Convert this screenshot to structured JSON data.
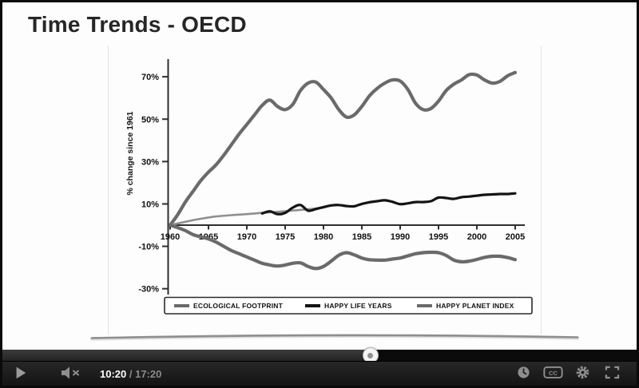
{
  "slide": {
    "title": "Time Trends - OECD"
  },
  "player": {
    "current_time": "10:20",
    "separator": " / ",
    "duration": "17:20",
    "progress_percent": 58,
    "cc_label": "CC",
    "icon_color": "#8e8e8e",
    "time_current_color": "#ffffff",
    "time_total_color": "#8a8a8a"
  },
  "chart_data": {
    "type": "line",
    "title": "",
    "xlabel": "",
    "ylabel": "% change since 1961",
    "x_ticks": [
      1960,
      1965,
      1970,
      1975,
      1980,
      1985,
      1990,
      1995,
      2000,
      2005
    ],
    "y_ticks": [
      70,
      50,
      30,
      10,
      -10,
      -30
    ],
    "y_tick_suffix": "%",
    "xlim": [
      1960,
      2006
    ],
    "ylim": [
      -30,
      75
    ],
    "grid": false,
    "legend_position": "bottom",
    "axis_color": "#2e2e2e",
    "tick_label_color": "#111111",
    "series": [
      {
        "name": "ECOLOGICAL FOOTPRINT",
        "color": "#6a6a6a",
        "width": 4.2,
        "in_legend": true,
        "points": [
          [
            1960,
            0
          ],
          [
            1961,
            5
          ],
          [
            1962,
            11
          ],
          [
            1963,
            16
          ],
          [
            1964,
            21
          ],
          [
            1965,
            25
          ],
          [
            1966,
            28.5
          ],
          [
            1967,
            33
          ],
          [
            1968,
            38
          ],
          [
            1969,
            43
          ],
          [
            1970,
            47.5
          ],
          [
            1971,
            52
          ],
          [
            1972,
            56.5
          ],
          [
            1973,
            59
          ],
          [
            1974,
            56
          ],
          [
            1975,
            54.5
          ],
          [
            1976,
            57
          ],
          [
            1977,
            63.5
          ],
          [
            1978,
            67
          ],
          [
            1979,
            67.5
          ],
          [
            1980,
            64
          ],
          [
            1981,
            60
          ],
          [
            1982,
            54.5
          ],
          [
            1983,
            51
          ],
          [
            1984,
            52
          ],
          [
            1985,
            56
          ],
          [
            1986,
            61
          ],
          [
            1987,
            64.5
          ],
          [
            1988,
            67
          ],
          [
            1989,
            68.5
          ],
          [
            1990,
            68
          ],
          [
            1991,
            64
          ],
          [
            1992,
            57.5
          ],
          [
            1993,
            54.5
          ],
          [
            1994,
            55
          ],
          [
            1995,
            58.5
          ],
          [
            1996,
            63.5
          ],
          [
            1997,
            66.5
          ],
          [
            1998,
            68.5
          ],
          [
            1999,
            71
          ],
          [
            2000,
            70.8
          ],
          [
            2001,
            68.5
          ],
          [
            2002,
            67
          ],
          [
            2003,
            67.8
          ],
          [
            2004,
            70.4
          ],
          [
            2005,
            72
          ]
        ]
      },
      {
        "name": "HAPPY LIFE YEARS (pre-1980 smooth segment)",
        "color": "#8f8f8f",
        "width": 2.6,
        "in_legend": false,
        "points": [
          [
            1960,
            0
          ],
          [
            1962,
            1.6
          ],
          [
            1964,
            3
          ],
          [
            1966,
            4.1
          ],
          [
            1968,
            4.7
          ],
          [
            1970,
            5.2
          ],
          [
            1972,
            5.8
          ],
          [
            1974,
            6.3
          ],
          [
            1976,
            6.9
          ],
          [
            1978,
            7.5
          ],
          [
            1980,
            8.3
          ]
        ]
      },
      {
        "name": "HAPPY LIFE YEARS",
        "color": "#141414",
        "width": 3.2,
        "in_legend": true,
        "points": [
          [
            1972,
            5.5
          ],
          [
            1973,
            6.5
          ],
          [
            1974,
            5.2
          ],
          [
            1975,
            5.8
          ],
          [
            1976,
            8.3
          ],
          [
            1977,
            9.5
          ],
          [
            1978,
            6.8
          ],
          [
            1979,
            7.6
          ],
          [
            1980,
            8.5
          ],
          [
            1981,
            9.3
          ],
          [
            1982,
            9.5
          ],
          [
            1983,
            9
          ],
          [
            1984,
            8.9
          ],
          [
            1985,
            10
          ],
          [
            1986,
            10.8
          ],
          [
            1987,
            11.3
          ],
          [
            1988,
            11.7
          ],
          [
            1989,
            11
          ],
          [
            1990,
            9.9
          ],
          [
            1991,
            10.3
          ],
          [
            1992,
            10.9
          ],
          [
            1993,
            10.9
          ],
          [
            1994,
            11.3
          ],
          [
            1995,
            13
          ],
          [
            1996,
            12.8
          ],
          [
            1997,
            12.4
          ],
          [
            1998,
            13.2
          ],
          [
            1999,
            13.5
          ],
          [
            2000,
            13.9
          ],
          [
            2001,
            14.3
          ],
          [
            2002,
            14.5
          ],
          [
            2003,
            14.7
          ],
          [
            2004,
            14.7
          ],
          [
            2005,
            15
          ]
        ]
      },
      {
        "name": "HAPPY PLANET INDEX",
        "color": "#6a6a6a",
        "width": 4.2,
        "in_legend": true,
        "points": [
          [
            1960,
            0
          ],
          [
            1961,
            -1.2
          ],
          [
            1962,
            -2.6
          ],
          [
            1963,
            -4.5
          ],
          [
            1964,
            -5.5
          ],
          [
            1965,
            -6.5
          ],
          [
            1966,
            -8
          ],
          [
            1967,
            -10
          ],
          [
            1968,
            -12
          ],
          [
            1969,
            -13.5
          ],
          [
            1970,
            -15
          ],
          [
            1971,
            -16.5
          ],
          [
            1972,
            -18
          ],
          [
            1973,
            -18.8
          ],
          [
            1974,
            -19.3
          ],
          [
            1975,
            -18.8
          ],
          [
            1976,
            -18
          ],
          [
            1977,
            -17.8
          ],
          [
            1978,
            -19.5
          ],
          [
            1979,
            -20.5
          ],
          [
            1980,
            -19.5
          ],
          [
            1981,
            -17
          ],
          [
            1982,
            -14.2
          ],
          [
            1983,
            -13
          ],
          [
            1984,
            -14
          ],
          [
            1985,
            -15.5
          ],
          [
            1986,
            -16.3
          ],
          [
            1987,
            -16.5
          ],
          [
            1988,
            -16.5
          ],
          [
            1989,
            -16
          ],
          [
            1990,
            -15.5
          ],
          [
            1991,
            -14.5
          ],
          [
            1992,
            -13.5
          ],
          [
            1993,
            -13
          ],
          [
            1994,
            -12.8
          ],
          [
            1995,
            -13
          ],
          [
            1996,
            -14.3
          ],
          [
            1997,
            -16.5
          ],
          [
            1998,
            -17.3
          ],
          [
            1999,
            -17
          ],
          [
            2000,
            -16.2
          ],
          [
            2001,
            -15.2
          ],
          [
            2002,
            -14.7
          ],
          [
            2003,
            -14.7
          ],
          [
            2004,
            -15.3
          ],
          [
            2005,
            -16.3
          ]
        ]
      }
    ],
    "legend": [
      {
        "label": "ECOLOGICAL FOOTPRINT",
        "color": "#6a6a6a"
      },
      {
        "label": "HAPPY LIFE YEARS",
        "color": "#141414"
      },
      {
        "label": "HAPPY PLANET INDEX",
        "color": "#6a6a6a"
      }
    ]
  }
}
